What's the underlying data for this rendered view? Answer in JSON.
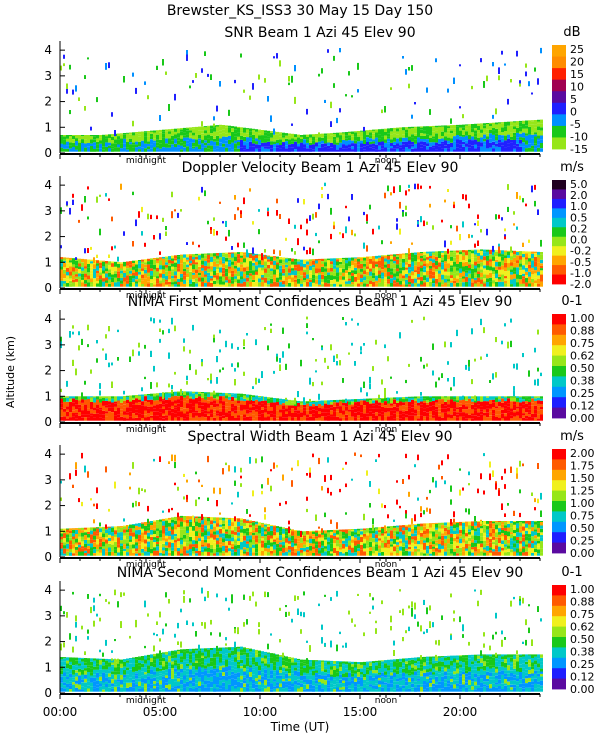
{
  "figure": {
    "title": "Brewster_KS_ISS3  30 May 15 Day 150",
    "xlabel": "Time (UT)",
    "ylabel": "Altitude (km)",
    "x_ticks": [
      "00:00",
      "05:00",
      "10:00",
      "15:00",
      "20:00"
    ],
    "day_markers": [
      "midnight",
      "noon"
    ],
    "midnight_hour": 4.3,
    "noon_hour": 16.3
  },
  "colors": {
    "scale": [
      "#5a0aa0",
      "#1e1eff",
      "#0096ff",
      "#00c8c8",
      "#19c819",
      "#96e619",
      "#f0f01e",
      "#ffa500",
      "#ff5a00",
      "#ff0000",
      "#000000"
    ]
  },
  "chart_data": [
    {
      "type": "heatmap",
      "title": "SNR Beam 1 Azi  45 Elev 90",
      "unit": "dB",
      "colorbar_ticks": [
        "25",
        "20",
        "15",
        "10",
        "5",
        "0",
        "-5",
        "-10",
        "-15"
      ],
      "colorbar_colors": [
        "#ffa500",
        "#ff8c00",
        "#ff2000",
        "#a00050",
        "#5a0aa0",
        "#2020ff",
        "#0090ff",
        "#19c819",
        "#96e619"
      ],
      "x_range_hours": [
        0,
        24
      ],
      "ylim_km": [
        0,
        4.2
      ],
      "y_ticks": [
        0,
        1,
        2,
        3,
        4
      ],
      "pattern": "snr",
      "boundary_layer_top_km": [
        [
          0,
          0.7
        ],
        [
          2,
          0.7
        ],
        [
          5,
          0.9
        ],
        [
          8,
          1.1
        ],
        [
          10,
          0.9
        ],
        [
          12,
          0.7
        ],
        [
          14,
          0.8
        ],
        [
          17,
          1.0
        ],
        [
          20,
          1.1
        ],
        [
          22,
          1.2
        ],
        [
          24,
          1.3
        ]
      ],
      "dominant_colors": [
        "#96e619",
        "#19c819",
        "#0090ff",
        "#2020ff"
      ]
    },
    {
      "type": "heatmap",
      "title": "Doppler Velocity Beam 1 Azi  45 Elev 90",
      "unit": "m/s",
      "colorbar_ticks": [
        "5.0",
        "2.0",
        "1.0",
        "0.5",
        "0.2",
        "0.0",
        "-0.2",
        "-0.5",
        "-1.0",
        "-2.0"
      ],
      "colorbar_colors": [
        "#200020",
        "#5a0aa0",
        "#1e1eff",
        "#0096ff",
        "#00c8c8",
        "#19c819",
        "#96e619",
        "#f0f01e",
        "#ffa500",
        "#ff5a00",
        "#ff0000"
      ],
      "x_range_hours": [
        0,
        24
      ],
      "ylim_km": [
        0,
        4.2
      ],
      "y_ticks": [
        0,
        1,
        2,
        3,
        4
      ],
      "pattern": "velocity",
      "boundary_layer_top_km": [
        [
          0,
          1.2
        ],
        [
          3,
          1.0
        ],
        [
          6,
          1.3
        ],
        [
          9,
          1.4
        ],
        [
          12,
          1.1
        ],
        [
          15,
          1.2
        ],
        [
          18,
          1.4
        ],
        [
          21,
          1.5
        ],
        [
          24,
          1.4
        ]
      ],
      "dominant_colors": [
        "#19c819",
        "#96e619",
        "#f0f01e",
        "#ffa500",
        "#00c8c8",
        "#ff5a00"
      ]
    },
    {
      "type": "heatmap",
      "title": "NIMA First Moment Confidences Beam 1 Azi  45 Elev 90",
      "unit": "0-1",
      "colorbar_ticks": [
        "1.00",
        "0.88",
        "0.75",
        "0.62",
        "0.50",
        "0.38",
        "0.25",
        "0.12",
        "0.00"
      ],
      "colorbar_colors": [
        "#ff0000",
        "#ff5a00",
        "#ffa500",
        "#f0f01e",
        "#96e619",
        "#19c819",
        "#00c8c8",
        "#0096ff",
        "#1e1eff",
        "#5a0aa0"
      ],
      "x_range_hours": [
        0,
        24
      ],
      "ylim_km": [
        0,
        4.2
      ],
      "y_ticks": [
        0,
        1,
        2,
        3,
        4
      ],
      "pattern": "conf1",
      "boundary_layer_top_km": [
        [
          0,
          1.0
        ],
        [
          3,
          1.0
        ],
        [
          6,
          1.2
        ],
        [
          9,
          1.1
        ],
        [
          12,
          0.8
        ],
        [
          15,
          0.9
        ],
        [
          18,
          1.0
        ],
        [
          21,
          1.0
        ],
        [
          24,
          1.0
        ]
      ],
      "dominant_colors": [
        "#ff0000",
        "#ff5a00",
        "#96e619",
        "#19c819",
        "#00c8c8"
      ]
    },
    {
      "type": "heatmap",
      "title": "Spectral Width Beam 1 Azi  45 Elev 90",
      "unit": "m/s",
      "colorbar_ticks": [
        "2.00",
        "1.75",
        "1.50",
        "1.25",
        "1.00",
        "0.75",
        "0.50",
        "0.25",
        "0.00"
      ],
      "colorbar_colors": [
        "#ff0000",
        "#ff5a00",
        "#ffa500",
        "#f0f01e",
        "#96e619",
        "#19c819",
        "#00c8c8",
        "#0096ff",
        "#1e1eff",
        "#5a0aa0"
      ],
      "x_range_hours": [
        0,
        24
      ],
      "ylim_km": [
        0,
        4.2
      ],
      "y_ticks": [
        0,
        1,
        2,
        3,
        4
      ],
      "pattern": "width",
      "boundary_layer_top_km": [
        [
          0,
          1.1
        ],
        [
          3,
          1.2
        ],
        [
          6,
          1.6
        ],
        [
          9,
          1.5
        ],
        [
          12,
          1.0
        ],
        [
          15,
          1.1
        ],
        [
          18,
          1.3
        ],
        [
          21,
          1.4
        ],
        [
          24,
          1.4
        ]
      ],
      "dominant_colors": [
        "#19c819",
        "#96e619",
        "#f0f01e",
        "#ffa500",
        "#ff5a00",
        "#00c8c8"
      ]
    },
    {
      "type": "heatmap",
      "title": "NIMA Second Moment Confidences Beam 1 Azi  45 Elev 90",
      "unit": "0-1",
      "colorbar_ticks": [
        "1.00",
        "0.88",
        "0.75",
        "0.62",
        "0.50",
        "0.38",
        "0.25",
        "0.12",
        "0.00"
      ],
      "colorbar_colors": [
        "#ff0000",
        "#ff5a00",
        "#ffa500",
        "#f0f01e",
        "#96e619",
        "#19c819",
        "#00c8c8",
        "#0096ff",
        "#1e1eff",
        "#5a0aa0"
      ],
      "x_range_hours": [
        0,
        24
      ],
      "ylim_km": [
        0,
        4.2
      ],
      "y_ticks": [
        0,
        1,
        2,
        3,
        4
      ],
      "pattern": "conf2",
      "boundary_layer_top_km": [
        [
          0,
          1.4
        ],
        [
          3,
          1.3
        ],
        [
          6,
          1.7
        ],
        [
          9,
          1.8
        ],
        [
          12,
          1.3
        ],
        [
          15,
          1.2
        ],
        [
          18,
          1.4
        ],
        [
          21,
          1.5
        ],
        [
          24,
          1.5
        ]
      ],
      "dominant_colors": [
        "#19c819",
        "#00c8c8",
        "#0096ff",
        "#96e619"
      ]
    }
  ]
}
